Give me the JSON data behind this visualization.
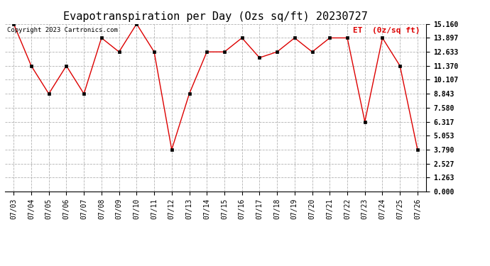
{
  "title": "Evapotranspiration per Day (Ozs sq/ft) 20230727",
  "legend_label": "ET  (0z/sq ft)",
  "copyright": "Copyright 2023 Cartronics.com",
  "dates": [
    "07/03",
    "07/04",
    "07/05",
    "07/06",
    "07/07",
    "07/08",
    "07/09",
    "07/10",
    "07/11",
    "07/12",
    "07/13",
    "07/14",
    "07/15",
    "07/16",
    "07/17",
    "07/18",
    "07/19",
    "07/20",
    "07/21",
    "07/22",
    "07/23",
    "07/24",
    "07/25",
    "07/26"
  ],
  "values": [
    15.16,
    11.37,
    8.843,
    11.37,
    8.843,
    13.897,
    12.633,
    15.16,
    12.633,
    3.79,
    8.843,
    12.633,
    12.633,
    13.897,
    12.107,
    12.633,
    13.897,
    12.633,
    13.897,
    13.897,
    6.317,
    13.897,
    11.37,
    3.79
  ],
  "line_color": "#dd0000",
  "marker_color": "#000000",
  "background_color": "#ffffff",
  "grid_color": "#aaaaaa",
  "title_color": "#000000",
  "legend_color": "#dd0000",
  "copyright_color": "#000000",
  "yticks": [
    0.0,
    1.263,
    2.527,
    3.79,
    5.053,
    6.317,
    7.58,
    8.843,
    10.107,
    11.37,
    12.633,
    13.897,
    15.16
  ],
  "ymin": 0.0,
  "ymax": 15.16,
  "title_fontsize": 11,
  "tick_fontsize": 7,
  "legend_fontsize": 8,
  "copyright_fontsize": 6.5
}
